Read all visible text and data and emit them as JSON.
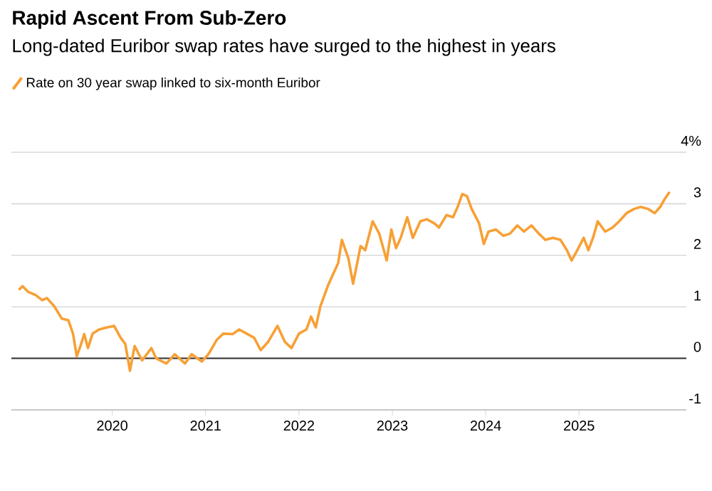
{
  "chart_data": {
    "type": "line",
    "title": "Rapid Ascent From Sub-Zero",
    "subtitle": "Long-dated Euribor swap rates have surged to the highest in years",
    "series": [
      {
        "name": "Rate on 30 year swap linked to six-month Euribor",
        "color": "#f7a035",
        "x": [
          2019.0,
          2019.04,
          2019.1,
          2019.18,
          2019.25,
          2019.3,
          2019.38,
          2019.46,
          2019.53,
          2019.58,
          2019.62,
          2019.66,
          2019.7,
          2019.74,
          2019.79,
          2019.86,
          2019.94,
          2020.02,
          2020.09,
          2020.14,
          2020.19,
          2020.24,
          2020.32,
          2020.42,
          2020.47,
          2020.58,
          2020.67,
          2020.78,
          2020.85,
          2020.96,
          2021.03,
          2021.12,
          2021.19,
          2021.29,
          2021.36,
          2021.44,
          2021.52,
          2021.59,
          2021.67,
          2021.77,
          2021.85,
          2021.92,
          2022.0,
          2022.08,
          2022.13,
          2022.18,
          2022.23,
          2022.31,
          2022.36,
          2022.42,
          2022.46,
          2022.53,
          2022.58,
          2022.66,
          2022.71,
          2022.79,
          2022.86,
          2022.94,
          2022.99,
          2023.04,
          2023.09,
          2023.16,
          2023.22,
          2023.3,
          2023.37,
          2023.45,
          2023.5,
          2023.58,
          2023.65,
          2023.7,
          2023.75,
          2023.8,
          2023.85,
          2023.93,
          2023.98,
          2024.03,
          2024.11,
          2024.19,
          2024.26,
          2024.34,
          2024.41,
          2024.49,
          2024.57,
          2024.64,
          2024.72,
          2024.8,
          2024.87,
          2024.92,
          2024.97,
          2025.05,
          2025.1,
          2025.15,
          2025.2,
          2025.28,
          2025.36,
          2025.43,
          2025.51,
          2025.59,
          2025.66,
          2025.74,
          2025.81,
          2025.87,
          2025.92,
          2025.97
        ],
        "values": [
          1.33,
          1.4,
          1.29,
          1.23,
          1.13,
          1.17,
          1.01,
          0.77,
          0.74,
          0.48,
          0.04,
          0.24,
          0.47,
          0.2,
          0.48,
          0.56,
          0.6,
          0.63,
          0.4,
          0.28,
          -0.24,
          0.24,
          -0.04,
          0.2,
          0.0,
          -0.1,
          0.08,
          -0.1,
          0.08,
          -0.06,
          0.08,
          0.36,
          0.48,
          0.47,
          0.56,
          0.48,
          0.4,
          0.16,
          0.32,
          0.63,
          0.32,
          0.2,
          0.48,
          0.56,
          0.81,
          0.6,
          1.01,
          1.41,
          1.61,
          1.85,
          2.3,
          1.94,
          1.45,
          2.18,
          2.1,
          2.66,
          2.42,
          1.9,
          2.5,
          2.14,
          2.34,
          2.74,
          2.34,
          2.66,
          2.7,
          2.62,
          2.54,
          2.78,
          2.74,
          2.94,
          3.19,
          3.15,
          2.9,
          2.62,
          2.22,
          2.46,
          2.5,
          2.38,
          2.42,
          2.58,
          2.46,
          2.58,
          2.42,
          2.3,
          2.34,
          2.3,
          2.1,
          1.9,
          2.06,
          2.34,
          2.1,
          2.34,
          2.66,
          2.46,
          2.54,
          2.66,
          2.82,
          2.9,
          2.94,
          2.9,
          2.82,
          2.94,
          3.1,
          3.23
        ]
      }
    ],
    "xlim": [
      2018.92,
      2026.15
    ],
    "xticks": [
      2020,
      2021,
      2022,
      2023,
      2024,
      2025
    ],
    "ylim": [
      -1,
      4
    ],
    "yticks": [
      -1,
      0,
      1,
      2,
      3,
      {
        "value": 4,
        "label": "4%"
      }
    ],
    "ref_lines": [
      {
        "axis": "y",
        "value": 0,
        "color": "#333333"
      }
    ],
    "grid": "y",
    "legend": "top left",
    "line_style": "solid",
    "marker": "none"
  }
}
